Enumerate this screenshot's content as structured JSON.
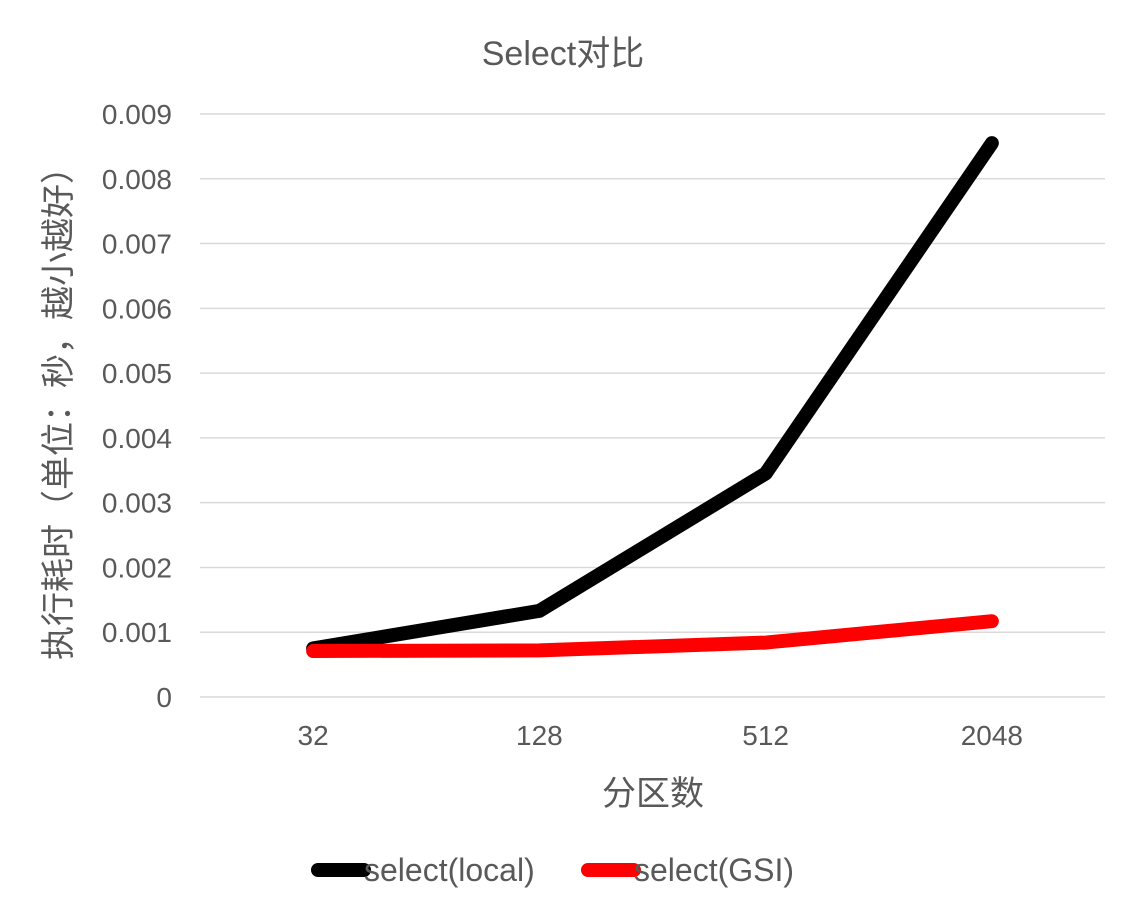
{
  "chart_data": {
    "type": "line",
    "title": "Select对比",
    "xlabel": "分区数",
    "ylabel": "执行耗时（单位：秒，越小越好）",
    "categories": [
      "32",
      "128",
      "512",
      "2048"
    ],
    "ylim": [
      0,
      0.009
    ],
    "yticks": [
      "0",
      "0.001",
      "0.002",
      "0.003",
      "0.004",
      "0.005",
      "0.006",
      "0.007",
      "0.008",
      "0.009"
    ],
    "grid": true,
    "legend_position": "bottom",
    "series": [
      {
        "name": "select(local)",
        "color": "#000000",
        "values": [
          0.00075,
          0.00133,
          0.00345,
          0.00855
        ]
      },
      {
        "name": "select(GSI)",
        "color": "#ff0000",
        "values": [
          0.00071,
          0.00072,
          0.00084,
          0.00117
        ]
      }
    ]
  }
}
